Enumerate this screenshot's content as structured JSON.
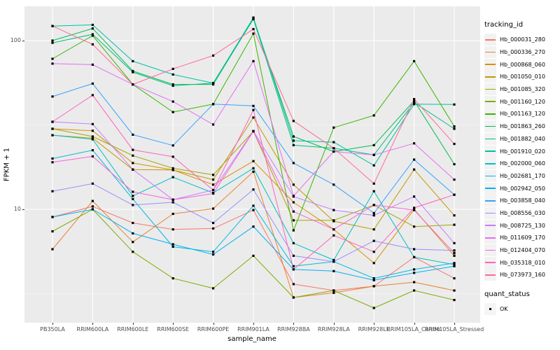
{
  "chart_data": {
    "type": "line",
    "title": "",
    "xlabel": "sample_name",
    "ylabel": "FPKM + 1",
    "yscale": "log10",
    "ylim": [
      1.95,
      146
    ],
    "grid": true,
    "legend_position": "right",
    "ytick_labels": [
      "100",
      "10"
    ],
    "ytick_values": [
      100,
      10
    ],
    "y_minor_gridlines": [
      31.6,
      3.16
    ],
    "point_marker": "black-square",
    "categories": [
      "PB350LA",
      "RRIM600LA",
      "RRIM600LE",
      "RRIM600SE",
      "RRIM600PE",
      "RRIM901LA",
      "RRIM928BA",
      "RRIM928LA",
      "RRIM928LE",
      "RRIM105LA_Control",
      "RRIM105LA_Stressed"
    ],
    "series": [
      {
        "name": "Hb_000031_280",
        "color": "#F8766D",
        "values": [
          9.0,
          10.4,
          8.3,
          7.6,
          7.7,
          9.9,
          3.6,
          3.3,
          3.5,
          5.2,
          3.9
        ]
      },
      {
        "name": "Hb_000336_270",
        "color": "#EA8331",
        "values": [
          5.8,
          11.2,
          6.4,
          9.4,
          10.1,
          16.7,
          3.0,
          3.2,
          3.5,
          3.7,
          3.3
        ]
      },
      {
        "name": "Hb_000868_060",
        "color": "#D89000",
        "values": [
          30.0,
          29.2,
          18.8,
          17.1,
          14.0,
          19.3,
          11.0,
          7.6,
          4.8,
          10.0,
          5.3
        ]
      },
      {
        "name": "Hb_001050_010",
        "color": "#C09B00",
        "values": [
          27.5,
          26.4,
          17.2,
          17.1,
          15.0,
          35.0,
          14.0,
          8.5,
          7.6,
          17.2,
          9.2
        ]
      },
      {
        "name": "Hb_001085_320",
        "color": "#A3A500",
        "values": [
          30.0,
          27.0,
          20.8,
          17.5,
          16.0,
          29.0,
          8.6,
          8.6,
          10.6,
          7.9,
          8.1
        ]
      },
      {
        "name": "Hb_001160_120",
        "color": "#7CAE00",
        "values": [
          7.4,
          10.0,
          5.6,
          3.9,
          3.4,
          5.3,
          3.0,
          3.3,
          2.6,
          3.3,
          2.9
        ]
      },
      {
        "name": "Hb_001163_120",
        "color": "#39B600",
        "values": [
          78.0,
          107.0,
          55.0,
          37.7,
          42.0,
          110.0,
          7.5,
          30.5,
          36.0,
          75.5,
          31.0
        ]
      },
      {
        "name": "Hb_001863_260",
        "color": "#00BB4E",
        "values": [
          100.0,
          118.0,
          66.0,
          55.0,
          55.0,
          135.0,
          27.0,
          22.0,
          24.0,
          44.0,
          18.5
        ]
      },
      {
        "name": "Hb_001882_040",
        "color": "#00BF7D",
        "values": [
          97.0,
          109.0,
          65.0,
          54.0,
          56.0,
          134.0,
          24.0,
          23.0,
          21.0,
          43.0,
          30.0
        ]
      },
      {
        "name": "Hb_001910_020",
        "color": "#00C1A3",
        "values": [
          122.0,
          124.0,
          75.5,
          63.0,
          56.0,
          137.0,
          25.5,
          25.0,
          18.2,
          42.0,
          41.8
        ]
      },
      {
        "name": "Hb_002000_060",
        "color": "#00BFC4",
        "values": [
          27.5,
          26.0,
          12.0,
          15.5,
          12.5,
          17.5,
          6.3,
          5.0,
          12.8,
          5.2,
          4.7
        ]
      },
      {
        "name": "Hb_002681_170",
        "color": "#00BAE0",
        "values": [
          20.0,
          22.4,
          11.5,
          6.0,
          5.6,
          10.5,
          4.6,
          4.9,
          3.9,
          4.4,
          4.8
        ]
      },
      {
        "name": "Hb_002942_050",
        "color": "#00B0F6",
        "values": [
          9.0,
          10.0,
          7.2,
          6.2,
          5.4,
          7.9,
          4.4,
          4.3,
          3.8,
          4.2,
          4.6
        ]
      },
      {
        "name": "Hb_003858_040",
        "color": "#35A2FF",
        "values": [
          46.6,
          55.6,
          27.7,
          23.9,
          42.0,
          41.0,
          18.8,
          14.0,
          9.5,
          19.7,
          12.2
        ]
      },
      {
        "name": "Hb_008556_030",
        "color": "#9590FF",
        "values": [
          12.8,
          14.2,
          10.6,
          11.0,
          8.3,
          13.1,
          5.3,
          4.9,
          6.5,
          5.8,
          5.7
        ]
      },
      {
        "name": "Hb_008725_130",
        "color": "#C77CFF",
        "values": [
          33.0,
          32.0,
          17.2,
          11.4,
          13.0,
          29.1,
          11.9,
          9.9,
          9.2,
          11.9,
          6.3
        ]
      },
      {
        "name": "Hb_011609_170",
        "color": "#E76BF3",
        "values": [
          73.0,
          72.0,
          55.0,
          43.5,
          31.8,
          75.5,
          12.0,
          22.0,
          21.0,
          24.6,
          15.0
        ]
      },
      {
        "name": "Hb_012404_070",
        "color": "#FA62DB",
        "values": [
          19.0,
          20.6,
          12.7,
          11.4,
          12.4,
          29.0,
          9.7,
          7.6,
          10.6,
          9.9,
          5.5
        ]
      },
      {
        "name": "Hb_035318_010",
        "color": "#FF62BC",
        "values": [
          33.0,
          47.5,
          22.5,
          20.5,
          13.0,
          38.8,
          4.4,
          7.0,
          5.6,
          10.2,
          12.2
        ]
      },
      {
        "name": "Hb_073973_160",
        "color": "#FF6A98",
        "values": [
          122.0,
          95.0,
          55.0,
          68.0,
          81.5,
          117.0,
          33.4,
          23.0,
          14.2,
          45.0,
          24.4
        ]
      }
    ]
  },
  "legend": {
    "tracking_title": "tracking_id",
    "quant_title": "quant_status",
    "quant_items": [
      {
        "label": "OK",
        "marker": "black-square"
      }
    ]
  },
  "colors": {
    "panel_bg": "#EBEBEB",
    "grid_major": "#FFFFFF",
    "grid_minor": "rgba(255,255,255,0.55)",
    "tick_text": "#4D4D4D",
    "point": "#000000",
    "legend_key_bg": "#F2F2F2"
  }
}
